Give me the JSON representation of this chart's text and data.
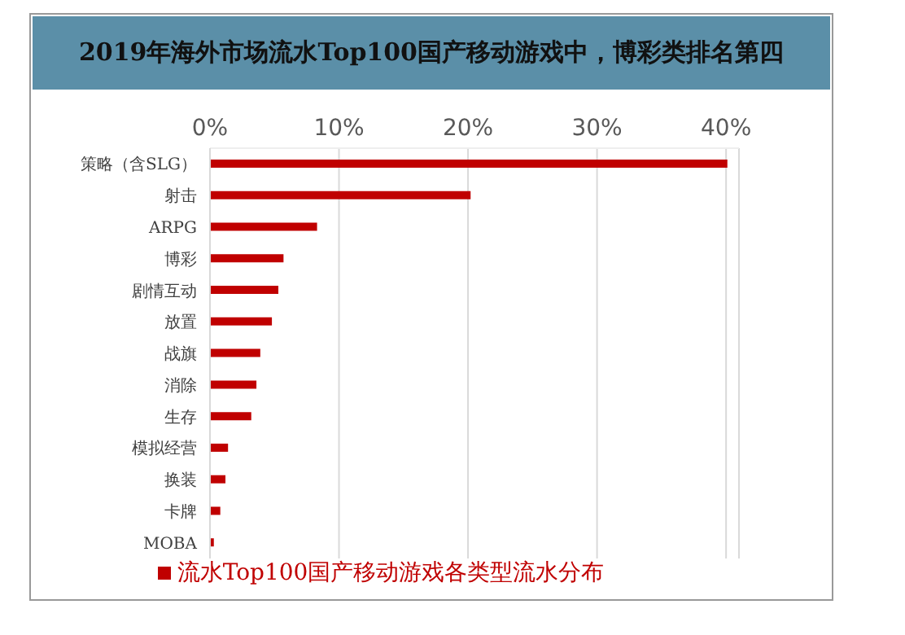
{
  "chart_data": {
    "type": "bar",
    "orientation": "horizontal",
    "title": "2019年海外市场流水Top100国产移动游戏中，博彩类排名第四",
    "categories": [
      "策略（含SLG）",
      "射击",
      "ARPG",
      "博彩",
      "剧情互动",
      "放置",
      "战旗",
      "消除",
      "生存",
      "模拟经营",
      "换装",
      "卡牌",
      "MOBA"
    ],
    "series": [
      {
        "name": "流水Top100国产移动游戏各类型流水分布",
        "color": "#c00000",
        "values": [
          40.1,
          20.2,
          8.3,
          5.7,
          5.3,
          4.8,
          3.9,
          3.6,
          3.2,
          1.4,
          1.2,
          0.8,
          0.3
        ]
      }
    ],
    "xlim": [
      0,
      41
    ],
    "xticks": [
      {
        "value": 0,
        "label": "0%"
      },
      {
        "value": 10,
        "label": "10%"
      },
      {
        "value": 20,
        "label": "20%"
      },
      {
        "value": 30,
        "label": "30%"
      },
      {
        "value": 40,
        "label": "40%"
      }
    ],
    "grid": "x",
    "legend": "bottom"
  }
}
